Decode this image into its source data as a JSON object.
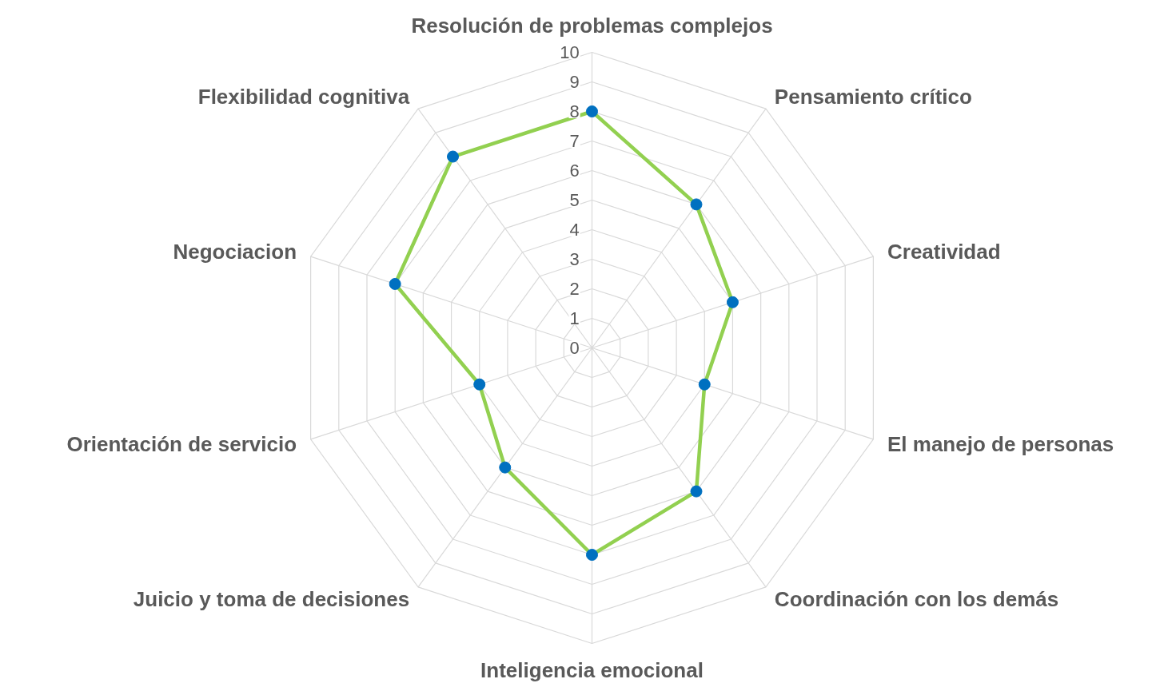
{
  "chart_data": {
    "type": "radar",
    "categories": [
      "Resolución de problemas complejos",
      "Pensamiento crítico",
      "Creatividad",
      "El manejo de personas",
      "Coordinación con los demás",
      "Inteligencia emocional",
      "Juicio y toma de decisiones",
      "Orientación de servicio",
      "Negociacion",
      "Flexibilidad cognitiva"
    ],
    "series": [
      {
        "color": "#92d050",
        "values": [
          8,
          6,
          5,
          4,
          6,
          7,
          5,
          4,
          7,
          8
        ]
      }
    ],
    "ylim": [
      0,
      10
    ],
    "yticks": [
      0,
      1,
      2,
      3,
      4,
      5,
      6,
      7,
      8,
      9,
      10
    ],
    "grid": true,
    "marker": "circle"
  }
}
